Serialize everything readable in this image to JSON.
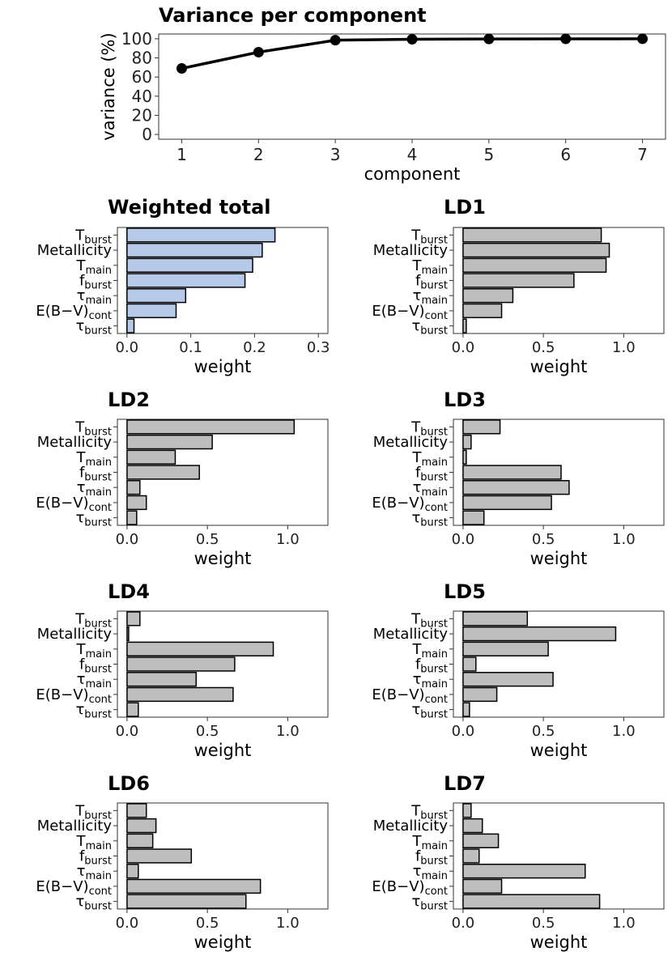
{
  "chart_data": [
    {
      "type": "line",
      "title": "Variance per component",
      "xlabel": "component",
      "ylabel": "variance (%)",
      "x": [
        1,
        2,
        3,
        4,
        5,
        6,
        7
      ],
      "values": [
        69,
        86,
        98.5,
        99.5,
        99.8,
        99.9,
        100
      ],
      "x_ticks": [
        1,
        2,
        3,
        4,
        5,
        6,
        7
      ],
      "y_ticks": [
        0,
        20,
        40,
        60,
        80,
        100
      ],
      "ylim": [
        0,
        100
      ],
      "color": "#000000"
    },
    {
      "type": "bar",
      "title": "Weighted total",
      "xlabel": "weight",
      "categories": [
        {
          "base": "T",
          "sub": "burst"
        },
        {
          "base": "Metallicity",
          "sub": ""
        },
        {
          "base": "T",
          "sub": "main"
        },
        {
          "base": "f",
          "sub": "burst"
        },
        {
          "base": "τ",
          "sub": "main"
        },
        {
          "base": "E(B−V)",
          "sub": "cont"
        },
        {
          "base": "τ",
          "sub": "burst"
        }
      ],
      "values": [
        0.232,
        0.212,
        0.197,
        0.185,
        0.092,
        0.077,
        0.011
      ],
      "xlim": [
        -0.015,
        0.315
      ],
      "x_ticks": [
        0,
        0.1,
        0.2,
        0.3
      ],
      "x_tick_labels": [
        "0.0",
        "0.1",
        "0.2",
        "0.3"
      ],
      "color": "#b6c9e9"
    },
    {
      "type": "bar",
      "title": "LD1",
      "xlabel": "weight",
      "categories": [
        {
          "base": "T",
          "sub": "burst"
        },
        {
          "base": "Metallicity",
          "sub": ""
        },
        {
          "base": "T",
          "sub": "main"
        },
        {
          "base": "f",
          "sub": "burst"
        },
        {
          "base": "τ",
          "sub": "main"
        },
        {
          "base": "E(B−V)",
          "sub": "cont"
        },
        {
          "base": "τ",
          "sub": "burst"
        }
      ],
      "values": [
        0.86,
        0.91,
        0.89,
        0.69,
        0.31,
        0.24,
        0.02
      ],
      "xlim": [
        -0.06,
        1.25
      ],
      "x_ticks": [
        0,
        0.5,
        1.0
      ],
      "x_tick_labels": [
        "0.0",
        "0.5",
        "1.0"
      ],
      "color": "#bebebe"
    },
    {
      "type": "bar",
      "title": "LD2",
      "xlabel": "weight",
      "categories": [
        {
          "base": "T",
          "sub": "burst"
        },
        {
          "base": "Metallicity",
          "sub": ""
        },
        {
          "base": "T",
          "sub": "main"
        },
        {
          "base": "f",
          "sub": "burst"
        },
        {
          "base": "τ",
          "sub": "main"
        },
        {
          "base": "E(B−V)",
          "sub": "cont"
        },
        {
          "base": "τ",
          "sub": "burst"
        }
      ],
      "values": [
        1.04,
        0.53,
        0.3,
        0.45,
        0.08,
        0.12,
        0.06
      ],
      "xlim": [
        -0.06,
        1.25
      ],
      "x_ticks": [
        0,
        0.5,
        1.0
      ],
      "x_tick_labels": [
        "0.0",
        "0.5",
        "1.0"
      ],
      "color": "#bebebe"
    },
    {
      "type": "bar",
      "title": "LD3",
      "xlabel": "weight",
      "categories": [
        {
          "base": "T",
          "sub": "burst"
        },
        {
          "base": "Metallicity",
          "sub": ""
        },
        {
          "base": "T",
          "sub": "main"
        },
        {
          "base": "f",
          "sub": "burst"
        },
        {
          "base": "τ",
          "sub": "main"
        },
        {
          "base": "E(B−V)",
          "sub": "cont"
        },
        {
          "base": "τ",
          "sub": "burst"
        }
      ],
      "values": [
        0.23,
        0.05,
        0.02,
        0.61,
        0.66,
        0.55,
        0.13
      ],
      "xlim": [
        -0.06,
        1.25
      ],
      "x_ticks": [
        0,
        0.5,
        1.0
      ],
      "x_tick_labels": [
        "0.0",
        "0.5",
        "1.0"
      ],
      "color": "#bebebe"
    },
    {
      "type": "bar",
      "title": "LD4",
      "xlabel": "weight",
      "categories": [
        {
          "base": "T",
          "sub": "burst"
        },
        {
          "base": "Metallicity",
          "sub": ""
        },
        {
          "base": "T",
          "sub": "main"
        },
        {
          "base": "f",
          "sub": "burst"
        },
        {
          "base": "τ",
          "sub": "main"
        },
        {
          "base": "E(B−V)",
          "sub": "cont"
        },
        {
          "base": "τ",
          "sub": "burst"
        }
      ],
      "values": [
        0.08,
        0.01,
        0.91,
        0.67,
        0.43,
        0.66,
        0.07
      ],
      "xlim": [
        -0.06,
        1.25
      ],
      "x_ticks": [
        0,
        0.5,
        1.0
      ],
      "x_tick_labels": [
        "0.0",
        "0.5",
        "1.0"
      ],
      "color": "#bebebe"
    },
    {
      "type": "bar",
      "title": "LD5",
      "xlabel": "weight",
      "categories": [
        {
          "base": "T",
          "sub": "burst"
        },
        {
          "base": "Metallicity",
          "sub": ""
        },
        {
          "base": "T",
          "sub": "main"
        },
        {
          "base": "f",
          "sub": "burst"
        },
        {
          "base": "τ",
          "sub": "main"
        },
        {
          "base": "E(B−V)",
          "sub": "cont"
        },
        {
          "base": "τ",
          "sub": "burst"
        }
      ],
      "values": [
        0.4,
        0.95,
        0.53,
        0.08,
        0.56,
        0.21,
        0.04
      ],
      "xlim": [
        -0.06,
        1.25
      ],
      "x_ticks": [
        0,
        0.5,
        1.0
      ],
      "x_tick_labels": [
        "0.0",
        "0.5",
        "1.0"
      ],
      "color": "#bebebe"
    },
    {
      "type": "bar",
      "title": "LD6",
      "xlabel": "weight",
      "categories": [
        {
          "base": "T",
          "sub": "burst"
        },
        {
          "base": "Metallicity",
          "sub": ""
        },
        {
          "base": "T",
          "sub": "main"
        },
        {
          "base": "f",
          "sub": "burst"
        },
        {
          "base": "τ",
          "sub": "main"
        },
        {
          "base": "E(B−V)",
          "sub": "cont"
        },
        {
          "base": "τ",
          "sub": "burst"
        }
      ],
      "values": [
        0.12,
        0.18,
        0.16,
        0.4,
        0.07,
        0.83,
        0.74
      ],
      "xlim": [
        -0.06,
        1.25
      ],
      "x_ticks": [
        0,
        0.5,
        1.0
      ],
      "x_tick_labels": [
        "0.0",
        "0.5",
        "1.0"
      ],
      "color": "#bebebe"
    },
    {
      "type": "bar",
      "title": "LD7",
      "xlabel": "weight",
      "categories": [
        {
          "base": "T",
          "sub": "burst"
        },
        {
          "base": "Metallicity",
          "sub": ""
        },
        {
          "base": "T",
          "sub": "main"
        },
        {
          "base": "f",
          "sub": "burst"
        },
        {
          "base": "τ",
          "sub": "main"
        },
        {
          "base": "E(B−V)",
          "sub": "cont"
        },
        {
          "base": "τ",
          "sub": "burst"
        }
      ],
      "values": [
        0.05,
        0.12,
        0.22,
        0.1,
        0.76,
        0.24,
        0.85
      ],
      "xlim": [
        -0.06,
        1.25
      ],
      "x_ticks": [
        0,
        0.5,
        1.0
      ],
      "x_tick_labels": [
        "0.0",
        "0.5",
        "1.0"
      ],
      "color": "#bebebe"
    }
  ]
}
